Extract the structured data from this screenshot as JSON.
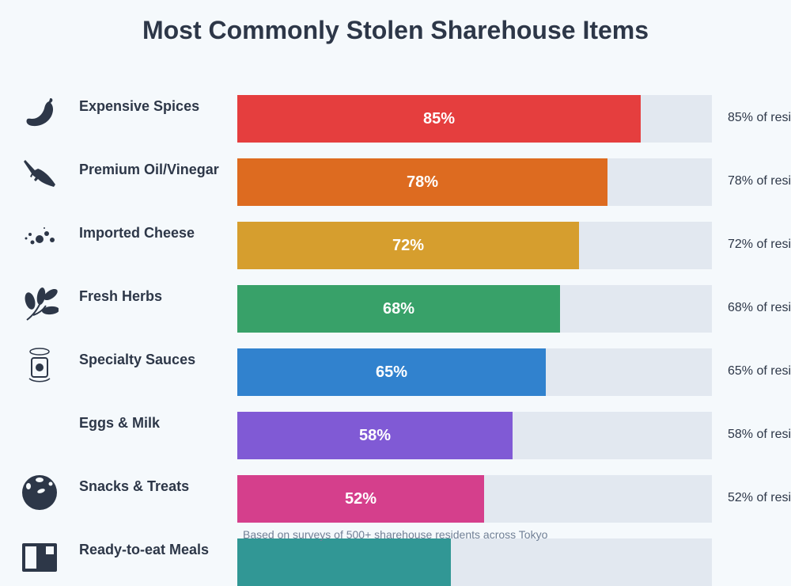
{
  "chart_data": {
    "type": "bar",
    "orientation": "horizontal",
    "title": "Most Commonly Stolen Sharehouse Items",
    "categories": [
      "Expensive Spices",
      "Premium Oil/Vinegar",
      "Imported Cheese",
      "Fresh Herbs",
      "Specialty Sauces",
      "Eggs & Milk",
      "Snacks & Treats",
      "Ready-to-eat Meals"
    ],
    "values": [
      85,
      78,
      72,
      68,
      65,
      58,
      52,
      45
    ],
    "value_labels": [
      "85%",
      "78%",
      "72%",
      "68%",
      "65%",
      "58%",
      "52%",
      ""
    ],
    "descriptions": [
      "85% of resi",
      "78% of resi",
      "72% of resi",
      "68% of resi",
      "65% of resi",
      "58% of resi",
      "52% of resi",
      ""
    ],
    "icons": [
      "chili-pepper-icon",
      "oil-bottle-icon",
      "cheese-crumbs-icon",
      "herb-leaf-icon",
      "sauce-jar-icon",
      "",
      "cookie-icon",
      "meal-box-icon"
    ],
    "colors": [
      "#e53e3e",
      "#dd6b20",
      "#d69e2e",
      "#38a169",
      "#3182ce",
      "#805ad5",
      "#d53f8c",
      "#319795"
    ],
    "track_color": "#e2e8f0",
    "xlim": [
      0,
      100
    ],
    "note": "Based on surveys of 500+ sharehouse residents across Tokyo"
  }
}
